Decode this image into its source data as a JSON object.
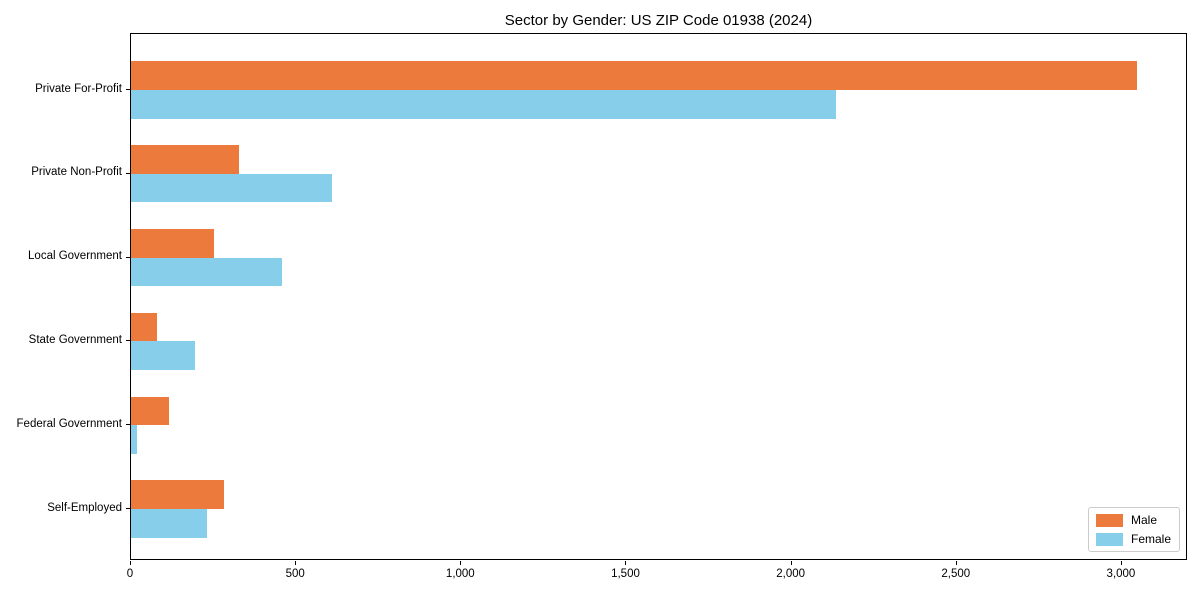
{
  "chart_data": {
    "type": "bar",
    "orientation": "horizontal",
    "title": "Sector by Gender: US ZIP Code 01938 (2024)",
    "categories": [
      "Private For-Profit",
      "Private Non-Profit",
      "Local Government",
      "State Government",
      "Federal Government",
      "Self-Employed"
    ],
    "series": [
      {
        "name": "Male",
        "color": "#ec7a3c",
        "values": [
          3045,
          328,
          250,
          80,
          115,
          283
        ]
      },
      {
        "name": "Female",
        "color": "#87ceeb",
        "values": [
          2135,
          610,
          458,
          193,
          19,
          230
        ]
      }
    ],
    "xlabel": "",
    "ylabel": "",
    "xlim": [
      0,
      3200
    ],
    "xticks": {
      "values": [
        0,
        500,
        1000,
        1500,
        2000,
        2500,
        3000
      ],
      "labels": [
        "0",
        "500",
        "1,000",
        "1,500",
        "2,000",
        "2,500",
        "3,000"
      ]
    },
    "grid": false,
    "legend_position": "lower right",
    "frame_color": "#000000",
    "background_color": "#ffffff"
  }
}
